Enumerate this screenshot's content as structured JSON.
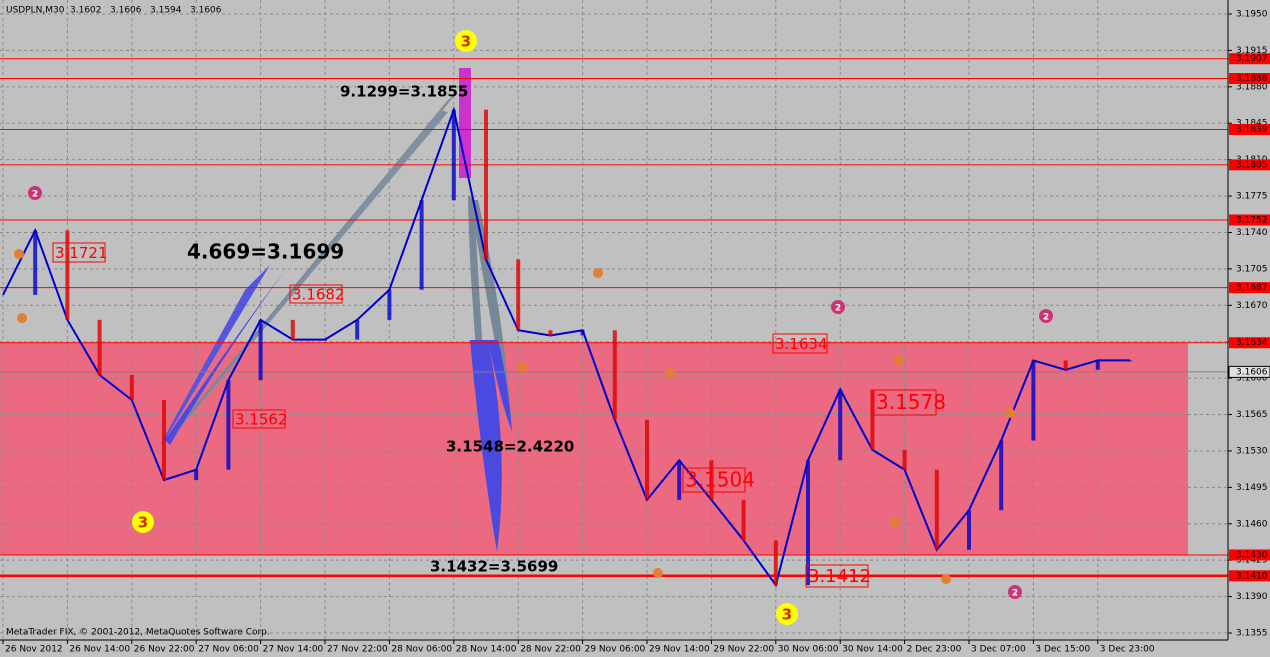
{
  "chart_data": {
    "type": "line",
    "title": "USDPLN,M30",
    "ohlc": [
      3.1602,
      3.1606,
      3.1594,
      3.1606
    ],
    "footer": "MetaTrader FIX, © 2001-2012, MetaQuotes Software Corp.",
    "categories": [
      "26 Nov 2012",
      null,
      "26 Nov 14:00",
      null,
      "26 Nov 22:00",
      null,
      "27 Nov 06:00",
      null,
      "27 Nov 14:00",
      null,
      "27 Nov 22:00",
      null,
      "28 Nov 06:00",
      null,
      "28 Nov 14:00",
      null,
      "28 Nov 22:00",
      null,
      "29 Nov 06:00",
      null,
      "29 Nov 14:00",
      null,
      "29 Nov 22:00",
      null,
      "30 Nov 06:00",
      null,
      "30 Nov 14:00",
      null,
      "2 Dec 23:00",
      null,
      "3 Dec 07:00",
      null,
      "3 Dec 15:00",
      null,
      "3 Dec 23:00",
      null
    ],
    "series": [
      {
        "name": "USDPLN",
        "color": "#0000cc",
        "values": [
          3.168,
          3.1742,
          3.1656,
          3.1603,
          3.1579,
          3.1502,
          3.1512,
          3.1598,
          3.1656,
          3.1637,
          3.1637,
          3.1656,
          3.1685,
          3.1771,
          3.1858,
          3.1714,
          3.1646,
          3.1641,
          3.1646,
          3.156,
          3.1483,
          3.1521,
          3.1483,
          3.1444,
          3.1401,
          3.1521,
          3.1589,
          3.1531,
          3.1512,
          3.1435,
          3.1473,
          3.154,
          3.1617,
          3.1608,
          3.1617,
          3.1617
        ]
      }
    ],
    "ylim": [
      3.1355,
      3.195
    ],
    "yticks": [
      {
        "value": 3.195,
        "label": "3.1950"
      },
      3.1915,
      {
        "value": 3.188,
        "label": "3.1880"
      },
      3.1845,
      {
        "value": 3.181,
        "label": "3.1810"
      },
      3.1775,
      {
        "value": 3.174,
        "label": "3.1740"
      },
      3.1705,
      {
        "value": 3.167,
        "label": "3.1670"
      },
      3.1635,
      {
        "value": 3.16,
        "label": "3.1600"
      },
      3.1565,
      {
        "value": 3.153,
        "label": "3.1530"
      },
      3.1495,
      {
        "value": 3.146,
        "label": "3.1460"
      },
      3.1425,
      {
        "value": 3.139,
        "label": "3.1390"
      },
      3.1355
    ],
    "grid": true,
    "levels": [
      3.1907,
      3.1888,
      3.1839,
      3.1805,
      3.1752,
      3.1687,
      3.1634,
      {
        "value": 3.143,
        "label": "3.1430"
      },
      {
        "value": 3.141,
        "label": "3.1410"
      }
    ],
    "level_color": "#ff0000",
    "zone_color": "#f0607a",
    "current_price": 3.1606,
    "annotations": [
      "9.1299=3.1855",
      "4.669=3.1699",
      "3.1548=2.4220",
      "3.1432=3.5699"
    ],
    "price_labels": [
      3.1721,
      3.1682,
      3.1562,
      3.1634,
      3.1578,
      3.1504,
      3.1412
    ],
    "wave_markers": [
      "3",
      "3",
      "3",
      "2",
      "2",
      "2",
      "2"
    ]
  }
}
